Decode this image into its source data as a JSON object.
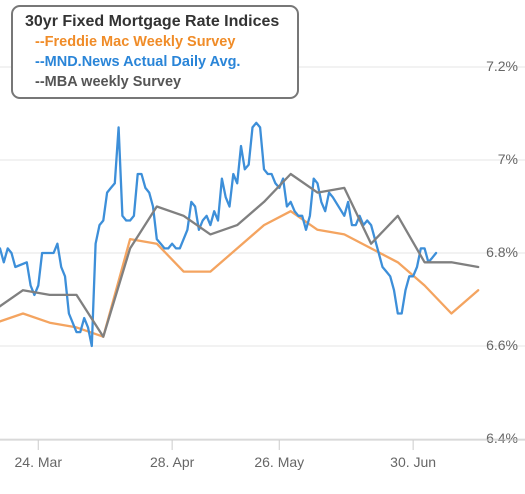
{
  "chart_data": {
    "type": "line",
    "title": "30yr Fixed Mortgage Rate Indices",
    "legend_position": "top-left",
    "x_axis": {
      "ticks": [
        {
          "label": "24. Mar",
          "x": 18
        },
        {
          "label": "28. Apr",
          "x": 53
        },
        {
          "label": "26. May",
          "x": 81
        },
        {
          "label": "30. Jun",
          "x": 116
        }
      ],
      "range": [
        8,
        134
      ]
    },
    "y_axis": {
      "ticks": [
        "6.4%",
        "6.6%",
        "6.8%",
        "7%",
        "7.2%"
      ],
      "tick_values": [
        6.4,
        6.6,
        6.8,
        7.0,
        7.2
      ],
      "range": [
        6.4,
        7.22
      ],
      "grid": true
    },
    "series": [
      {
        "name": "--Freddie Mac Weekly Survey",
        "color": "#f4a460",
        "points": [
          [
            7,
            6.65
          ],
          [
            14,
            6.67
          ],
          [
            21,
            6.65
          ],
          [
            28,
            6.64
          ],
          [
            35,
            6.62
          ],
          [
            42,
            6.83
          ],
          [
            49,
            6.82
          ],
          [
            56,
            6.76
          ],
          [
            63,
            6.76
          ],
          [
            70,
            6.81
          ],
          [
            77,
            6.86
          ],
          [
            84,
            6.89
          ],
          [
            91,
            6.85
          ],
          [
            98,
            6.84
          ],
          [
            105,
            6.81
          ],
          [
            112,
            6.78
          ],
          [
            119,
            6.73
          ],
          [
            126,
            6.67
          ],
          [
            133,
            6.72
          ]
        ]
      },
      {
        "name": "--MND.News Actual Daily Avg.",
        "color": "#3d8fd9",
        "points": [
          [
            8,
            6.81
          ],
          [
            9,
            6.78
          ],
          [
            10,
            6.81
          ],
          [
            11,
            6.8
          ],
          [
            12,
            6.77
          ],
          [
            15,
            6.78
          ],
          [
            16,
            6.73
          ],
          [
            17,
            6.71
          ],
          [
            18,
            6.73
          ],
          [
            19,
            6.8
          ],
          [
            20,
            6.8
          ],
          [
            22,
            6.8
          ],
          [
            23,
            6.82
          ],
          [
            24,
            6.77
          ],
          [
            25,
            6.75
          ],
          [
            26,
            6.67
          ],
          [
            28,
            6.63
          ],
          [
            29,
            6.63
          ],
          [
            30,
            6.66
          ],
          [
            31,
            6.64
          ],
          [
            32,
            6.6
          ],
          [
            33,
            6.82
          ],
          [
            34,
            6.86
          ],
          [
            35,
            6.87
          ],
          [
            36,
            6.93
          ],
          [
            37,
            6.94
          ],
          [
            38,
            6.95
          ],
          [
            39,
            7.07
          ],
          [
            40,
            6.88
          ],
          [
            41,
            6.87
          ],
          [
            42,
            6.87
          ],
          [
            43,
            6.88
          ],
          [
            44,
            6.97
          ],
          [
            45,
            6.97
          ],
          [
            46,
            6.94
          ],
          [
            47,
            6.93
          ],
          [
            48,
            6.9
          ],
          [
            49,
            6.83
          ],
          [
            50,
            6.82
          ],
          [
            51,
            6.81
          ],
          [
            52,
            6.81
          ],
          [
            53,
            6.82
          ],
          [
            54,
            6.81
          ],
          [
            55,
            6.81
          ],
          [
            57,
            6.85
          ],
          [
            58,
            6.91
          ],
          [
            59,
            6.9
          ],
          [
            60,
            6.85
          ],
          [
            61,
            6.87
          ],
          [
            62,
            6.88
          ],
          [
            63,
            6.86
          ],
          [
            64,
            6.89
          ],
          [
            65,
            6.87
          ],
          [
            66,
            6.96
          ],
          [
            67,
            6.92
          ],
          [
            68,
            6.9
          ],
          [
            69,
            6.97
          ],
          [
            70,
            6.95
          ],
          [
            71,
            7.03
          ],
          [
            72,
            6.98
          ],
          [
            73,
            6.99
          ],
          [
            74,
            7.07
          ],
          [
            75,
            7.08
          ],
          [
            76,
            7.07
          ],
          [
            77,
            6.98
          ],
          [
            78,
            6.97
          ],
          [
            79,
            6.97
          ],
          [
            80,
            6.95
          ],
          [
            81,
            6.94
          ],
          [
            82,
            6.96
          ],
          [
            83,
            6.9
          ],
          [
            84,
            6.91
          ],
          [
            85,
            6.89
          ],
          [
            86,
            6.88
          ],
          [
            87,
            6.88
          ],
          [
            88,
            6.85
          ],
          [
            89,
            6.88
          ],
          [
            90,
            6.96
          ],
          [
            91,
            6.95
          ],
          [
            92,
            6.91
          ],
          [
            93,
            6.89
          ],
          [
            94,
            6.93
          ],
          [
            95,
            6.92
          ],
          [
            98,
            6.88
          ],
          [
            99,
            6.91
          ],
          [
            100,
            6.86
          ],
          [
            101,
            6.86
          ],
          [
            102,
            6.88
          ],
          [
            103,
            6.86
          ],
          [
            104,
            6.87
          ],
          [
            105,
            6.86
          ],
          [
            106,
            6.83
          ],
          [
            107,
            6.8
          ],
          [
            108,
            6.77
          ],
          [
            109,
            6.76
          ],
          [
            110,
            6.75
          ],
          [
            111,
            6.72
          ],
          [
            112,
            6.67
          ],
          [
            113,
            6.67
          ],
          [
            114,
            6.72
          ],
          [
            115,
            6.75
          ],
          [
            116,
            6.75
          ],
          [
            117,
            6.77
          ],
          [
            118,
            6.81
          ],
          [
            119,
            6.81
          ],
          [
            120,
            6.78
          ],
          [
            121,
            6.79
          ],
          [
            122,
            6.8
          ]
        ]
      },
      {
        "name": "--MBA weekly Survey",
        "color": "#808080",
        "points": [
          [
            7,
            6.68
          ],
          [
            14,
            6.72
          ],
          [
            21,
            6.71
          ],
          [
            28,
            6.71
          ],
          [
            35,
            6.62
          ],
          [
            42,
            6.81
          ],
          [
            49,
            6.9
          ],
          [
            56,
            6.88
          ],
          [
            63,
            6.84
          ],
          [
            70,
            6.86
          ],
          [
            77,
            6.91
          ],
          [
            84,
            6.97
          ],
          [
            91,
            6.93
          ],
          [
            98,
            6.94
          ],
          [
            105,
            6.82
          ],
          [
            112,
            6.88
          ],
          [
            119,
            6.78
          ],
          [
            126,
            6.78
          ],
          [
            133,
            6.77
          ]
        ]
      }
    ]
  }
}
